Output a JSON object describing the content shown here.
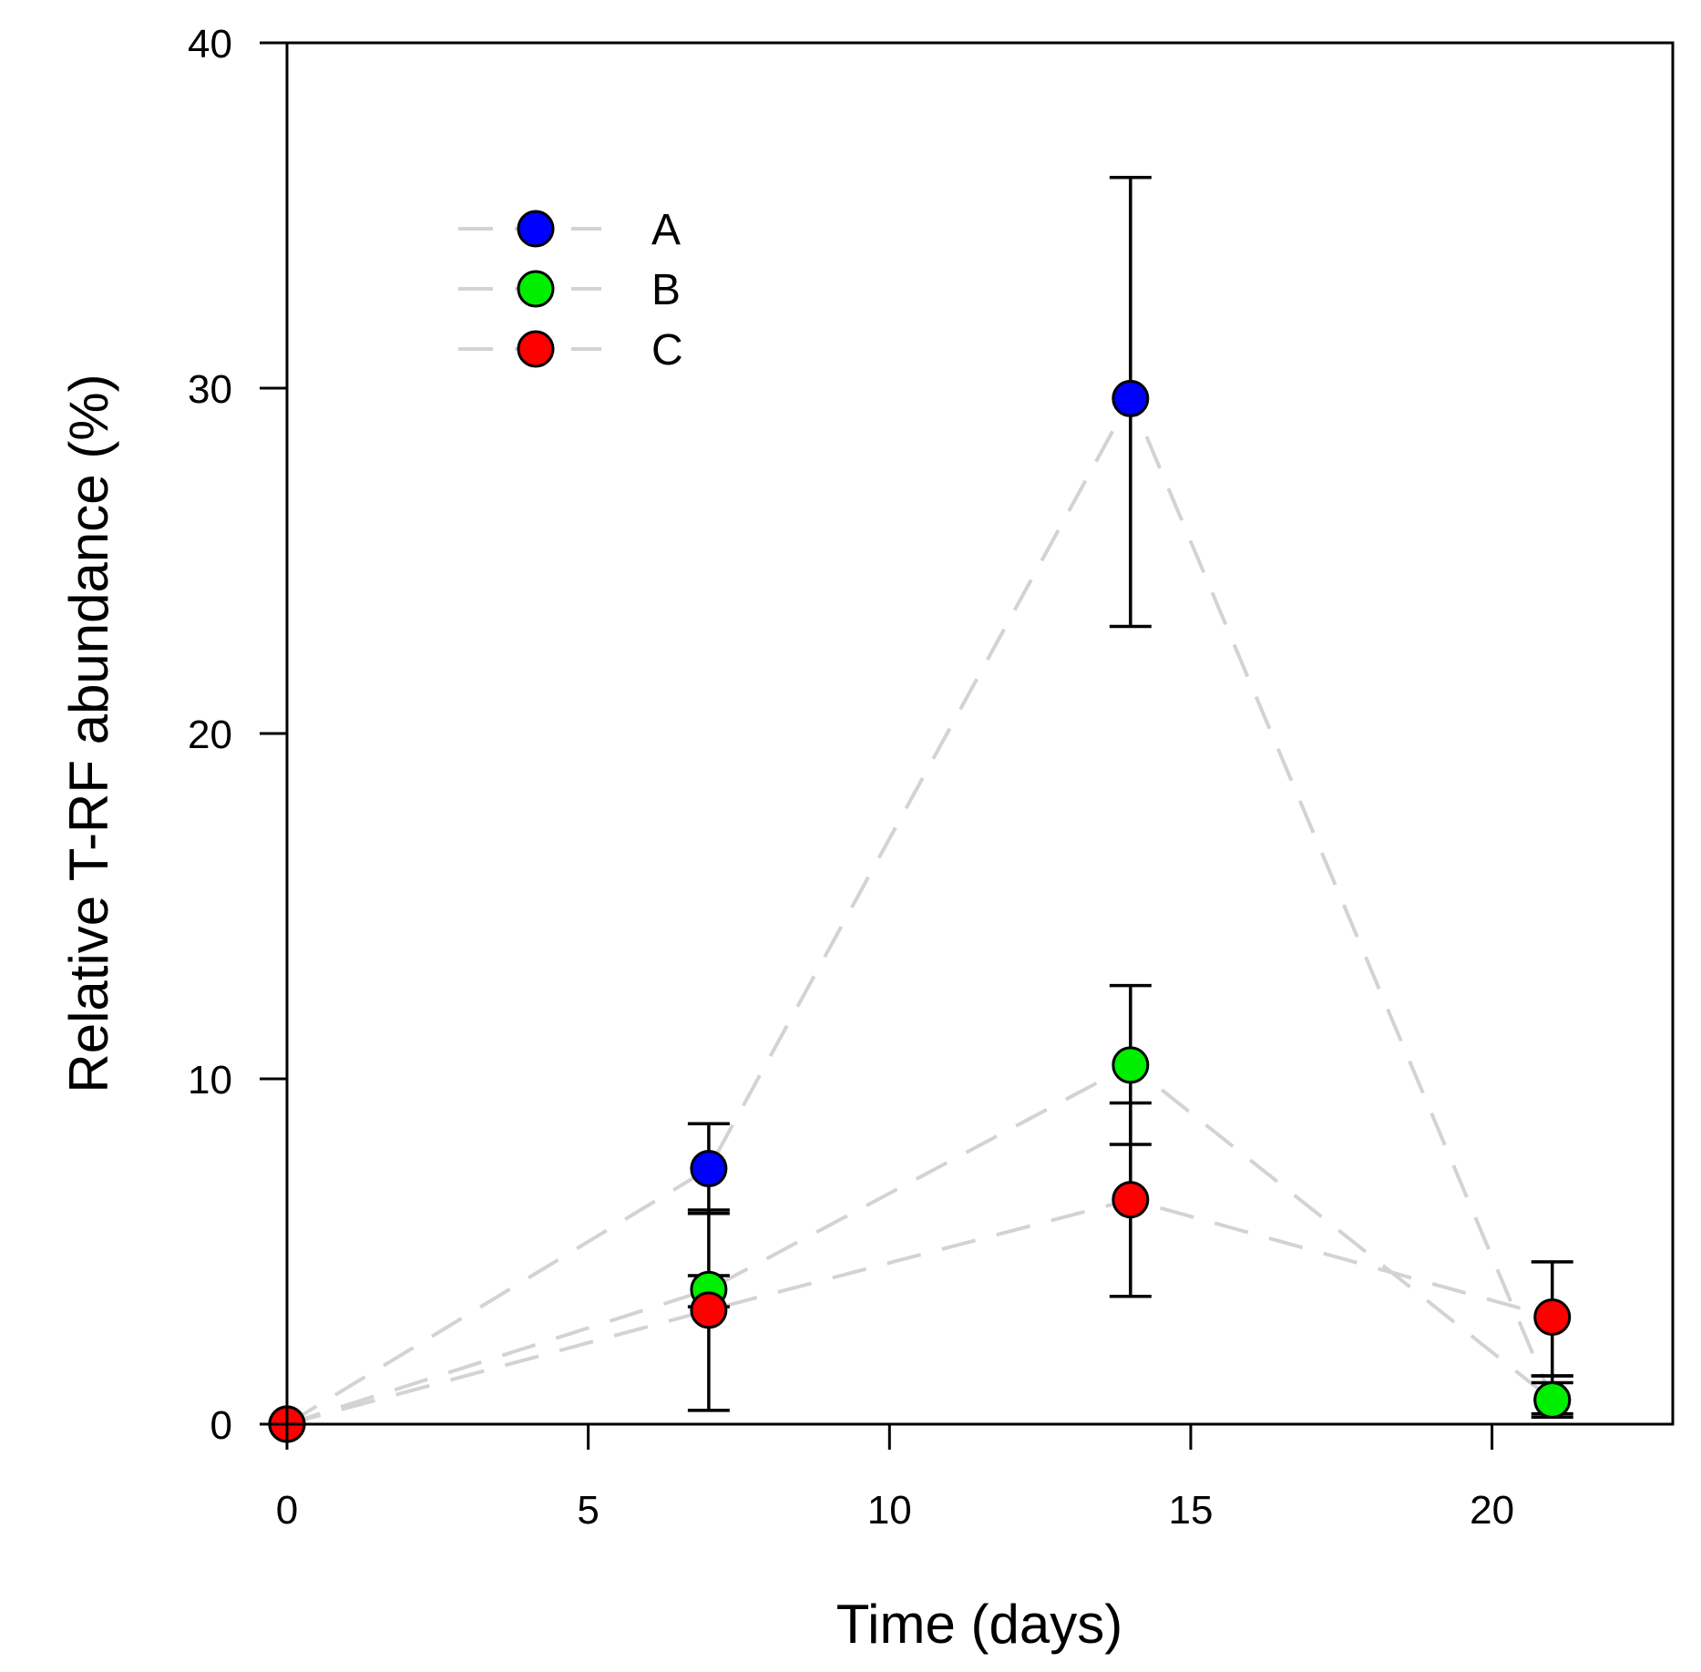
{
  "chart_data": {
    "type": "scatter",
    "title": "",
    "xlabel": "Time (days)",
    "ylabel": "Relative T-RF abundance (%)",
    "xlim": [
      0,
      23
    ],
    "ylim": [
      0,
      40
    ],
    "xticks": [
      0,
      5,
      10,
      15,
      20
    ],
    "yticks": [
      0,
      10,
      20,
      30,
      40
    ],
    "grid": false,
    "legend_position": "top-left",
    "line_style": "dashed",
    "line_color": "#d3d3d3",
    "series": [
      {
        "name": "A",
        "color": "#0000ff",
        "x": [
          0,
          7,
          14,
          21
        ],
        "y": [
          0,
          7.4,
          29.7,
          0.7
        ],
        "err_upper": [
          null,
          8.7,
          36.1,
          1.2
        ],
        "err_lower": [
          null,
          6.1,
          23.1,
          0.3
        ]
      },
      {
        "name": "B",
        "color": "#00ee00",
        "x": [
          0,
          7,
          14,
          21
        ],
        "y": [
          0,
          3.9,
          10.4,
          0.7
        ],
        "err_upper": [
          null,
          4.3,
          12.7,
          1.4
        ],
        "err_lower": [
          null,
          3.4,
          8.1,
          0.2
        ]
      },
      {
        "name": "C",
        "color": "#ff0000",
        "x": [
          0,
          7,
          14,
          21
        ],
        "y": [
          0,
          3.3,
          6.5,
          3.1
        ],
        "err_upper": [
          null,
          6.2,
          9.3,
          4.7
        ],
        "err_lower": [
          null,
          0.4,
          3.7,
          1.4
        ]
      }
    ]
  }
}
